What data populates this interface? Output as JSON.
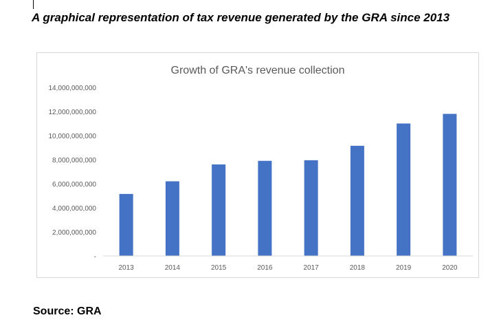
{
  "heading": "A graphical representation of tax revenue generated by the GRA since 2013",
  "source": "Source: GRA",
  "colors": {
    "bar": "#4472C4",
    "axis_text": "#595959",
    "title_text": "#595959",
    "axis_line": "#d9d9d9"
  },
  "chart_data": {
    "type": "bar",
    "title": "Growth of GRA's revenue collection",
    "xlabel": "",
    "ylabel": "",
    "categories": [
      "2013",
      "2014",
      "2015",
      "2016",
      "2017",
      "2018",
      "2019",
      "2020"
    ],
    "values": [
      5150000000,
      6200000000,
      7600000000,
      7900000000,
      7950000000,
      9150000000,
      11000000000,
      11800000000
    ],
    "ylim": [
      0,
      14000000000
    ],
    "yticks": [
      "-",
      "2,000,000,000",
      "4,000,000,000",
      "6,000,000,000",
      "8,000,000,000",
      "10,000,000,000",
      "12,000,000,000",
      "14,000,000,000"
    ],
    "grid": false,
    "legend": "none"
  }
}
